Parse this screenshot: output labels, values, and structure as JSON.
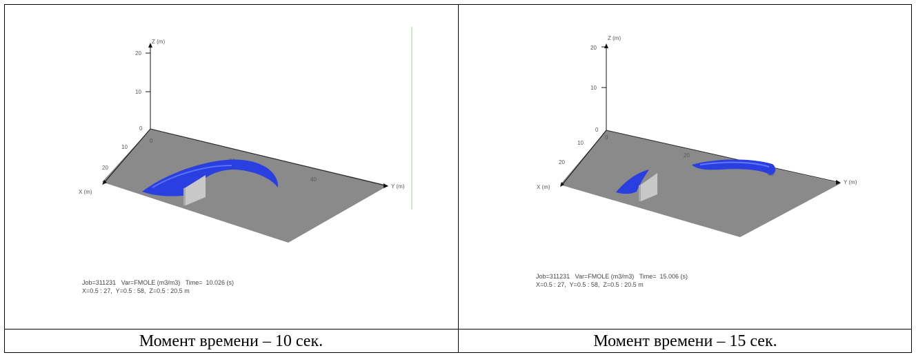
{
  "panels": [
    {
      "axis_labels": {
        "z": "Z (m)",
        "x": "X (m)",
        "y": "Y (m)"
      },
      "z_ticks": [
        "20",
        "10",
        "0"
      ],
      "x_ticks": [
        "10",
        "20"
      ],
      "y_ticks": [
        "0",
        "20",
        "40"
      ],
      "info_line1": "Job=311231   Var=FMOLE (m3/m3)   Time=  10.026 (s)",
      "info_line2": "X=0.5 : 27,  Y=0.5 : 58,  Z=0.5 : 20.5 m",
      "caption": "Момент времени – 10 сек."
    },
    {
      "axis_labels": {
        "z": "Z (m)",
        "x": "X (m)",
        "y": "Y (m)"
      },
      "z_ticks": [
        "20",
        "10",
        "0"
      ],
      "x_ticks": [
        "10",
        "20"
      ],
      "y_ticks": [
        "0",
        "20",
        "40"
      ],
      "info_line1": "Job=311231   Var=FMOLE (m3/m3)   Time=  15.006 (s)",
      "info_line2": "X=0.5 : 27,  Y=0.5 : 58,  Z=0.5 : 20.5 m",
      "caption": "Момент времени – 15 сек."
    }
  ],
  "colors": {
    "ground": "#8a8a8a",
    "cloud": "#2a3fe0",
    "wall": "#c8c8c8"
  }
}
